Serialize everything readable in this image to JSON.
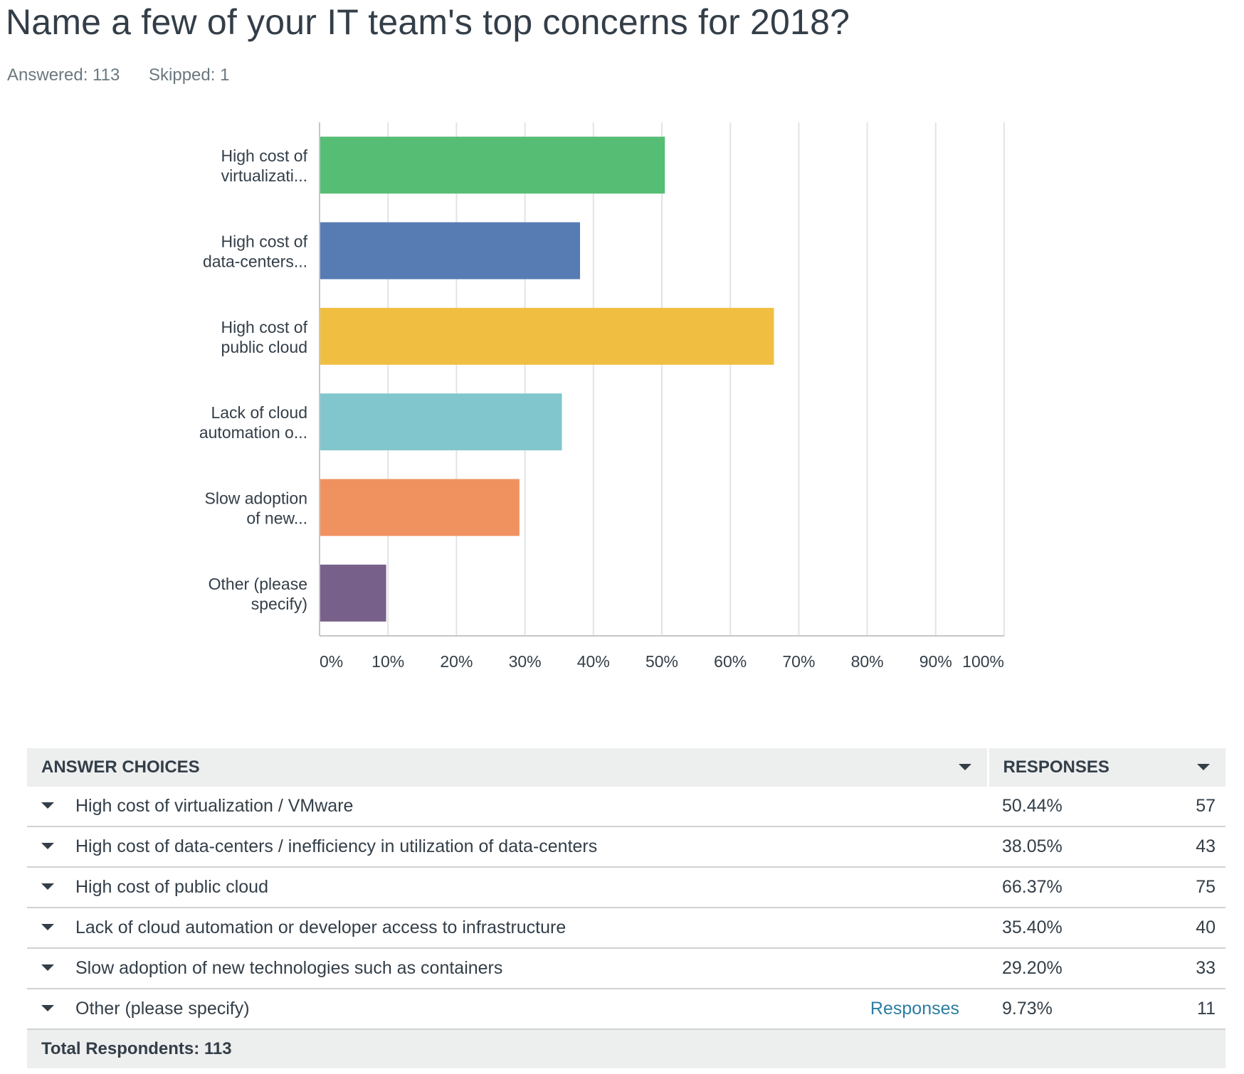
{
  "question": {
    "title": "Name a few of your IT team's top concerns for 2018?",
    "answered": "Answered: 113",
    "skipped": "Skipped: 1"
  },
  "chart_data": {
    "type": "bar",
    "orientation": "horizontal",
    "categories": [
      [
        "High cost of",
        "virtualizati..."
      ],
      [
        "High cost of",
        "data-centers..."
      ],
      [
        "High cost of",
        "public cloud"
      ],
      [
        "Lack of cloud",
        "automation o..."
      ],
      [
        "Slow adoption",
        "of new..."
      ],
      [
        "Other (please",
        "specify)"
      ]
    ],
    "values": [
      50.44,
      38.05,
      66.37,
      35.4,
      29.2,
      9.73
    ],
    "colors": [
      "#56bd75",
      "#577bb3",
      "#f0bf42",
      "#82c6cd",
      "#f09260",
      "#776089"
    ],
    "xlim": [
      0,
      100
    ],
    "xticks": [
      "0%",
      "10%",
      "20%",
      "30%",
      "40%",
      "50%",
      "60%",
      "70%",
      "80%",
      "90%",
      "100%"
    ],
    "grid": true,
    "title": "",
    "xlabel": "",
    "ylabel": ""
  },
  "table": {
    "headers": {
      "choices": "ANSWER CHOICES",
      "responses": "RESPONSES"
    },
    "rows": [
      {
        "choice": "High cost of virtualization / VMware",
        "pct": "50.44%",
        "count": "57"
      },
      {
        "choice": "High cost of data-centers / inefficiency in utilization of data-centers",
        "pct": "38.05%",
        "count": "43"
      },
      {
        "choice": "High cost of public cloud",
        "pct": "66.37%",
        "count": "75"
      },
      {
        "choice": "Lack of cloud automation or developer access to infrastructure",
        "pct": "35.40%",
        "count": "40"
      },
      {
        "choice": "Slow adoption of new technologies such as containers",
        "pct": "29.20%",
        "count": "33"
      },
      {
        "choice": "Other (please specify)",
        "pct": "9.73%",
        "count": "11",
        "link": "Responses"
      }
    ],
    "total": "Total Respondents: 113"
  }
}
